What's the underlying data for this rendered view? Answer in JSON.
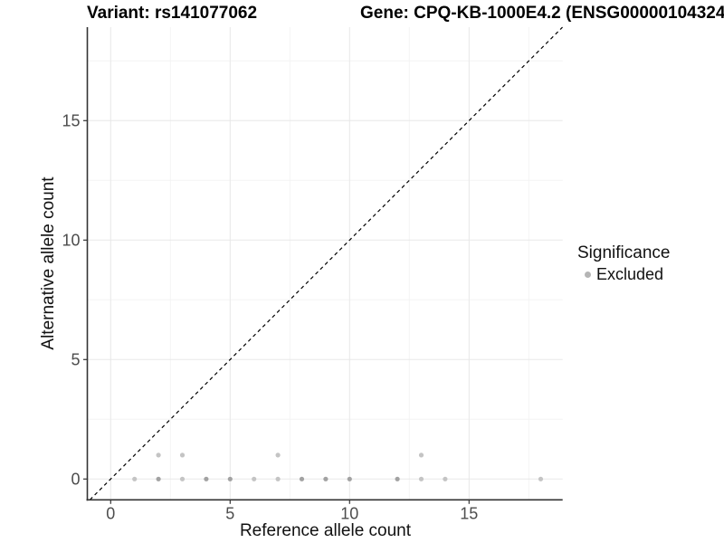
{
  "chart_data": {
    "type": "scatter",
    "titles": {
      "left": "Variant: rs141077062",
      "right": "Gene: CPQ-KB-1000E4.2 (ENSG00000104324"
    },
    "xlabel": "Reference allele count",
    "ylabel": "Alternative allele count",
    "xlim": [
      -1,
      19
    ],
    "ylim": [
      -1,
      19
    ],
    "x_ticks": [
      0,
      5,
      10,
      15
    ],
    "y_ticks": [
      0,
      5,
      10,
      15
    ],
    "grid": {
      "major": true,
      "minor": true
    },
    "identity_line": {
      "equation": "y = x",
      "style": "dashed",
      "color": "#000000"
    },
    "points": [
      {
        "x": 1,
        "y": 0,
        "n": 1
      },
      {
        "x": 2,
        "y": 0,
        "n": 2
      },
      {
        "x": 3,
        "y": 0,
        "n": 1
      },
      {
        "x": 4,
        "y": 0,
        "n": 2
      },
      {
        "x": 5,
        "y": 0,
        "n": 2
      },
      {
        "x": 6,
        "y": 0,
        "n": 1
      },
      {
        "x": 7,
        "y": 0,
        "n": 1
      },
      {
        "x": 8,
        "y": 0,
        "n": 2
      },
      {
        "x": 9,
        "y": 0,
        "n": 2
      },
      {
        "x": 10,
        "y": 0,
        "n": 2
      },
      {
        "x": 12,
        "y": 0,
        "n": 2
      },
      {
        "x": 13,
        "y": 0,
        "n": 1
      },
      {
        "x": 14,
        "y": 0,
        "n": 1
      },
      {
        "x": 18,
        "y": 0,
        "n": 1
      },
      {
        "x": 2,
        "y": 1,
        "n": 1
      },
      {
        "x": 3,
        "y": 1,
        "n": 1
      },
      {
        "x": 7,
        "y": 1,
        "n": 1
      },
      {
        "x": 13,
        "y": 1,
        "n": 1
      }
    ],
    "point_colors": {
      "single": "#c4c4c4",
      "overlap": "#a2a2a2"
    },
    "legend": {
      "title": "Significance",
      "position": "right",
      "items": [
        {
          "label": "Excluded",
          "color": "#b5b5b5"
        }
      ]
    },
    "colors": {
      "background": "#ffffff",
      "axis_line": "#333333",
      "tick_label": "#4d4d4d",
      "grid_major": "#e8e8e8",
      "grid_minor": "#f4f4f4"
    }
  }
}
